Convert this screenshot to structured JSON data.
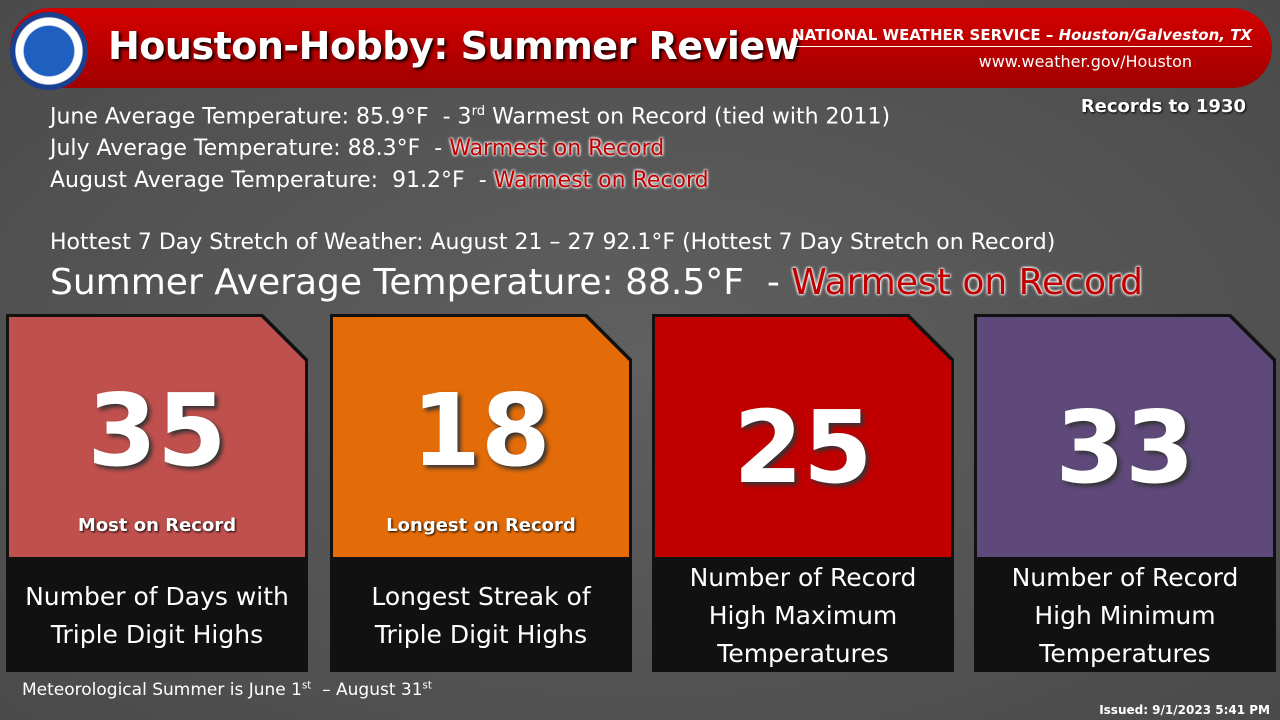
{
  "header": {
    "title": "Houston-Hobby: Summer Review",
    "agency": "NATIONAL WEATHER SERVICE – ",
    "office": "Houston/Galveston, TX",
    "url": "www.weather.gov/Houston",
    "records": "Records to 1930"
  },
  "lines": [
    {
      "parts": [
        {
          "text": "June Average Temperature: 85.9°F  - 3"
        },
        {
          "text": "rd",
          "sup": true
        },
        {
          "text": " Warmest on Record (tied with 2011)"
        }
      ]
    },
    {
      "parts": [
        {
          "text": "July Average Temperature: 88.3°F  - "
        },
        {
          "text": "Warmest on Record",
          "highlight": true
        }
      ]
    },
    {
      "parts": [
        {
          "text": "August Average Temperature:  91.2°F  - "
        },
        {
          "text": "Warmest on Record",
          "highlight": true
        }
      ]
    },
    {
      "parts": [
        {
          "text": "Hottest 7 Day Stretch of Weather: August 21 – 27 92.1°F (Hottest 7 Day Stretch on Record)"
        }
      ]
    },
    {
      "parts": [
        {
          "text": "Summer Average Temperature: 88.5°F  - "
        },
        {
          "text": "Warmest on Record",
          "highlight": true
        }
      ],
      "large": true
    }
  ],
  "cards": [
    {
      "number": 35,
      "note": "Most on Record",
      "label": [
        "Number of Days with",
        "Triple Digit Highs"
      ],
      "color": "#c0504d"
    },
    {
      "number": 18,
      "note": "Longest on Record",
      "label": [
        "Longest Streak of",
        "Triple Digit Highs"
      ],
      "color": "#e36c09"
    },
    {
      "number": 25,
      "label": [
        "Number of Record",
        "High Maximum",
        "Temperatures"
      ],
      "color": "#c00000"
    },
    {
      "number": 33,
      "label": [
        "Number of Record",
        "High Minimum",
        "Temperatures"
      ],
      "color": "#5f497a"
    }
  ],
  "footer": {
    "parts": [
      {
        "text": "Meteorological Summer is June 1"
      },
      {
        "text": "st",
        "sup": true
      },
      {
        "text": "  – August 31"
      },
      {
        "text": "st",
        "sup": true
      }
    ],
    "issued": "Issued: 9/1/2023 5:41 PM"
  }
}
